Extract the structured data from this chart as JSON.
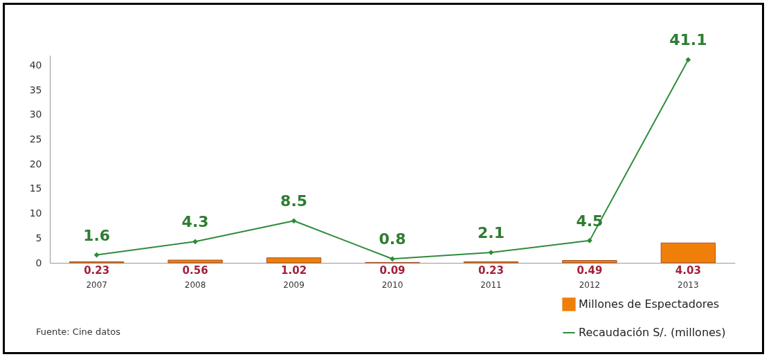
{
  "chart_data": {
    "type": "bar",
    "categories": [
      "2007",
      "2008",
      "2009",
      "2010",
      "2011",
      "2012",
      "2013"
    ],
    "series": [
      {
        "name": "Millones de Espectadores",
        "type": "bar",
        "color": "#f07f09",
        "values": [
          0.23,
          0.56,
          1.02,
          0.09,
          0.23,
          0.49,
          4.03
        ]
      },
      {
        "name": "Recaudación S/. (millones)",
        "type": "line",
        "color": "#2e8b3a",
        "values": [
          1.6,
          4.3,
          8.5,
          0.8,
          2.1,
          4.5,
          41.1
        ]
      }
    ],
    "ylim": [
      0,
      42
    ],
    "yticks": [
      0,
      5,
      10,
      15,
      20,
      25,
      30,
      35,
      40
    ],
    "grid": false,
    "legend": "bottom right",
    "marker": "diamond",
    "data_labels": true,
    "annotations": [
      "Fuente: Cine datos"
    ]
  }
}
